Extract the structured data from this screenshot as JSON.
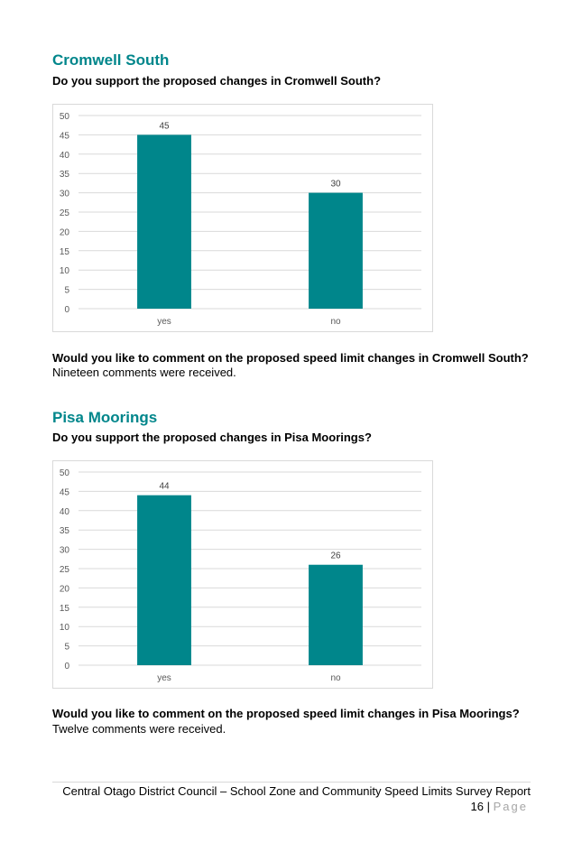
{
  "sections": [
    {
      "title": "Cromwell South",
      "question": "Do you support the proposed changes in Cromwell South?",
      "comment_question": "Would you like to comment on the proposed speed limit changes in Cromwell South?",
      "comment_answer": "Nineteen comments were received."
    },
    {
      "title": "Pisa Moorings",
      "question": "Do you support the proposed changes in Pisa Moorings?",
      "comment_question": "Would you like to comment on the proposed speed limit changes in Pisa Moorings?",
      "comment_answer": "Twelve comments were received."
    }
  ],
  "chart_data": [
    {
      "type": "bar",
      "categories": [
        "yes",
        "no"
      ],
      "values": [
        45,
        30
      ],
      "ylim": [
        0,
        50
      ],
      "yticks": [
        0,
        5,
        10,
        15,
        20,
        25,
        30,
        35,
        40,
        45,
        50
      ],
      "grid": true,
      "bar_color": "#00868b",
      "title": "",
      "xlabel": "",
      "ylabel": ""
    },
    {
      "type": "bar",
      "categories": [
        "yes",
        "no"
      ],
      "values": [
        44,
        26
      ],
      "ylim": [
        0,
        50
      ],
      "yticks": [
        0,
        5,
        10,
        15,
        20,
        25,
        30,
        35,
        40,
        45,
        50
      ],
      "grid": true,
      "bar_color": "#00868b",
      "title": "",
      "xlabel": "",
      "ylabel": ""
    }
  ],
  "footer": {
    "report_title": "Central Otago District Council – School Zone and Community Speed Limits Survey Report",
    "page_number": "16",
    "page_separator": " | ",
    "page_word": "Page"
  }
}
